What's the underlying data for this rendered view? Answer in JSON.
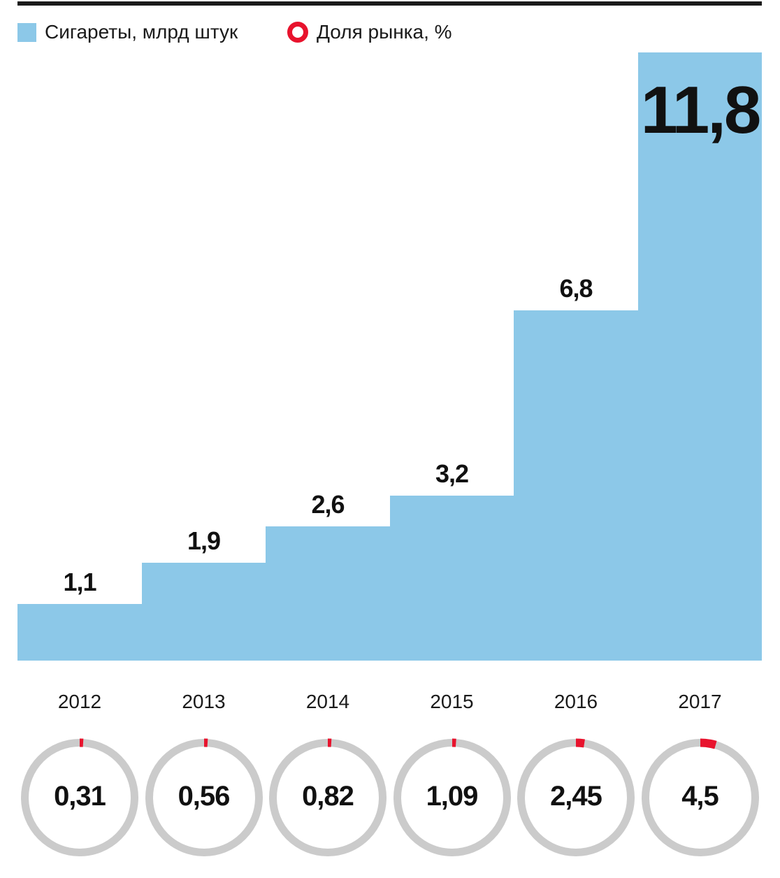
{
  "legend": {
    "series1_label": "Сигареты, млрд штук",
    "series2_label": "Доля рынка, %"
  },
  "colors": {
    "bar_blue": "#8CC8E8",
    "accent_red": "#E8132D",
    "ring_gray": "#CBCBCB",
    "text_black": "#1A1A1A",
    "rule_black": "#1A1A1A"
  },
  "chart_data": {
    "type": "bar",
    "categories": [
      "2012",
      "2013",
      "2014",
      "2015",
      "2016",
      "2017"
    ],
    "series": [
      {
        "name": "Сигареты, млрд штук",
        "type": "step-bar",
        "values": [
          1.1,
          1.9,
          2.6,
          3.2,
          6.8,
          11.8
        ],
        "labels": [
          "1,1",
          "1,9",
          "2,6",
          "3,2",
          "6,8",
          "11,8"
        ]
      },
      {
        "name": "Доля рынка, %",
        "type": "donut-gauge",
        "values": [
          0.31,
          0.56,
          0.82,
          1.09,
          2.45,
          4.5
        ],
        "labels": [
          "0,31",
          "0,56",
          "0,82",
          "1,09",
          "2,45",
          "4,5"
        ]
      }
    ],
    "ylim": [
      0,
      11.8
    ],
    "grid": false,
    "legend_position": "top",
    "value_labels_shown": true
  }
}
